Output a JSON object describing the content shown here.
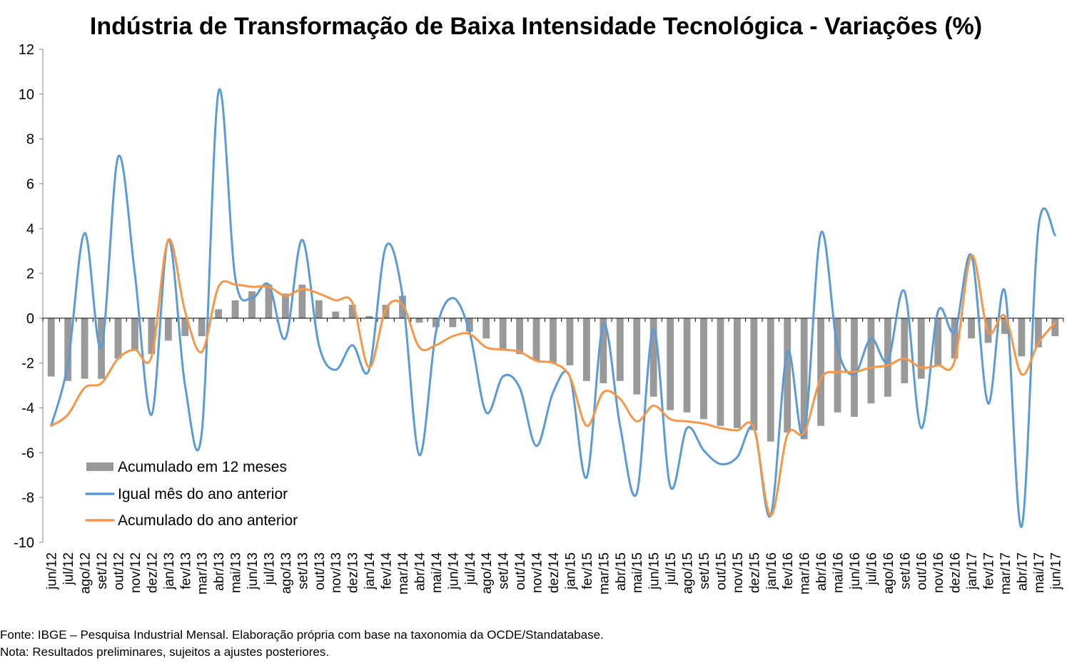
{
  "chart_data": {
    "type": "bar",
    "title": "Indústria de Transformação de Baixa Intensidade Tecnológica - Variações (%)",
    "xlabel": "",
    "ylabel": "",
    "ylim": [
      -10,
      12
    ],
    "y_ticks": [
      12,
      10,
      8,
      6,
      4,
      2,
      0,
      -2,
      -4,
      -6,
      -8,
      -10
    ],
    "grid": false,
    "legend_position": "bottom-left",
    "categories": [
      "jun/12",
      "jul/12",
      "ago/12",
      "set/12",
      "out/12",
      "nov/12",
      "dez/12",
      "jan/13",
      "fev/13",
      "mar/13",
      "abr/13",
      "mai/13",
      "jun/13",
      "jul/13",
      "ago/13",
      "set/13",
      "out/13",
      "nov/13",
      "dez/13",
      "jan/14",
      "fev/14",
      "mar/14",
      "abr/14",
      "mai/14",
      "jun/14",
      "jul/14",
      "ago/14",
      "set/14",
      "out/14",
      "nov/14",
      "dez/14",
      "jan/15",
      "fev/15",
      "mar/15",
      "abr/15",
      "mai/15",
      "jun/15",
      "jul/15",
      "ago/15",
      "set/15",
      "out/15",
      "nov/15",
      "dez/15",
      "jan/16",
      "fev/16",
      "mar/16",
      "abr/16",
      "mai/16",
      "jun/16",
      "jul/16",
      "ago/16",
      "set/16",
      "out/16",
      "nov/16",
      "dez/16",
      "jan/17",
      "fev/17",
      "mar/17",
      "abr/17",
      "mai/17",
      "jun/17"
    ],
    "series": [
      {
        "name": "Acumulado em 12 meses",
        "kind": "bar",
        "color": "#999999",
        "values": [
          -2.6,
          -2.8,
          -2.7,
          -2.7,
          -1.8,
          -1.4,
          -1.6,
          -1.0,
          -0.8,
          -0.8,
          0.4,
          0.8,
          1.2,
          1.5,
          1.1,
          1.5,
          0.8,
          0.3,
          0.6,
          0.1,
          0.6,
          1.0,
          -0.2,
          -0.4,
          -0.4,
          -0.6,
          -0.9,
          -1.4,
          -1.6,
          -1.9,
          -2.0,
          -2.1,
          -2.8,
          -2.9,
          -2.8,
          -3.4,
          -3.5,
          -4.1,
          -4.2,
          -4.5,
          -4.8,
          -4.9,
          -5.0,
          -5.5,
          -5.1,
          -5.4,
          -4.8,
          -4.2,
          -4.4,
          -3.8,
          -3.5,
          -2.9,
          -2.7,
          -2.1,
          -1.8,
          -0.9,
          -1.1,
          -0.7,
          -1.7,
          -1.3,
          -0.8
        ]
      },
      {
        "name": "Igual mês do ano anterior",
        "kind": "line",
        "color": "#5b9bd5",
        "values": [
          -4.8,
          -2.0,
          3.8,
          -1.3,
          7.2,
          2.0,
          -4.3,
          3.5,
          -3.0,
          -5.1,
          10.1,
          1.8,
          0.9,
          1.5,
          -0.9,
          3.5,
          -1.2,
          -2.3,
          -1.2,
          -2.3,
          3.2,
          1.0,
          -6.1,
          -0.6,
          0.9,
          -0.6,
          -4.2,
          -2.6,
          -3.1,
          -5.7,
          -3.3,
          -2.6,
          -7.1,
          -0.3,
          -4.8,
          -7.8,
          -0.5,
          -7.5,
          -4.9,
          -5.9,
          -6.5,
          -6.2,
          -4.9,
          -8.8,
          -1.5,
          -5.2,
          3.8,
          -1.3,
          -2.5,
          -0.9,
          -1.9,
          1.2,
          -4.9,
          0.3,
          -0.6,
          2.8,
          -3.8,
          1.2,
          -9.3,
          4.0,
          3.7
        ]
      },
      {
        "name": "Acumulado do ano anterior",
        "kind": "line",
        "color": "#f79646",
        "values": [
          -4.8,
          -4.3,
          -3.1,
          -2.9,
          -1.8,
          -1.4,
          -1.7,
          3.5,
          0.3,
          -1.5,
          1.4,
          1.5,
          1.4,
          1.4,
          1.0,
          1.3,
          1.1,
          0.8,
          0.7,
          -2.2,
          0.4,
          0.6,
          -1.3,
          -1.2,
          -0.8,
          -0.7,
          -1.3,
          -1.4,
          -1.5,
          -1.9,
          -2.0,
          -2.6,
          -4.8,
          -3.3,
          -3.6,
          -4.6,
          -3.9,
          -4.5,
          -4.6,
          -4.7,
          -4.9,
          -5.0,
          -4.9,
          -8.8,
          -5.2,
          -5.1,
          -2.7,
          -2.4,
          -2.4,
          -2.2,
          -2.1,
          -1.8,
          -2.2,
          -2.1,
          -1.9,
          2.8,
          -0.6,
          0.1,
          -2.5,
          -1.1,
          -0.2
        ]
      }
    ]
  },
  "footnotes": {
    "source": "Fonte: IBGE – Pesquisa Industrial Mensal. Elaboração própria com base na taxonomia da OCDE/Standatabase.",
    "note": "Nota: Resultados preliminares, sujeitos a ajustes posteriores."
  }
}
